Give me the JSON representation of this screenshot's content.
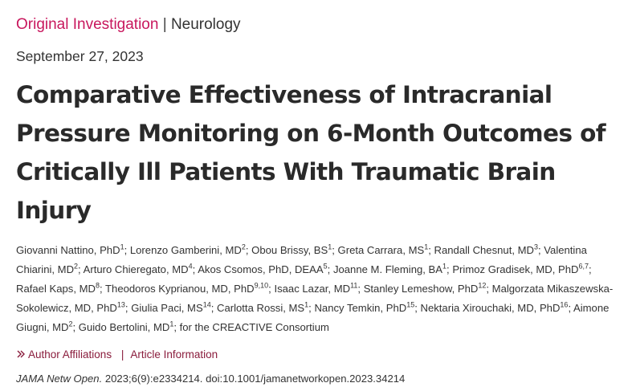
{
  "header": {
    "article_type": "Original Investigation",
    "separator": "|",
    "section": "Neurology"
  },
  "date": "September 27, 2023",
  "title": "Comparative Effectiveness of Intracranial Pressure Monitoring on 6-Month Outcomes of Critically Ill Patients With Traumatic Brain Injury",
  "authors": [
    {
      "name": "Giovanni Nattino, PhD",
      "sup": "1"
    },
    {
      "name": "Lorenzo Gamberini, MD",
      "sup": "2"
    },
    {
      "name": "Obou Brissy, BS",
      "sup": "1"
    },
    {
      "name": "Greta Carrara, MS",
      "sup": "1"
    },
    {
      "name": "Randall Chesnut, MD",
      "sup": "3"
    },
    {
      "name": "Valentina Chiarini, MD",
      "sup": "2"
    },
    {
      "name": "Arturo Chieregato, MD",
      "sup": "4"
    },
    {
      "name": "Akos Csomos, PhD, DEAA",
      "sup": "5"
    },
    {
      "name": "Joanne M. Fleming, BA",
      "sup": "1"
    },
    {
      "name": "Primoz Gradisek, MD, PhD",
      "sup": "6,7"
    },
    {
      "name": "Rafael Kaps, MD",
      "sup": "8"
    },
    {
      "name": "Theodoros Kyprianou, MD, PhD",
      "sup": "9,10"
    },
    {
      "name": "Isaac Lazar, MD",
      "sup": "11"
    },
    {
      "name": "Stanley Lemeshow, PhD",
      "sup": "12"
    },
    {
      "name": "Malgorzata Mikaszewska-Sokolewicz, MD, PhD",
      "sup": "13"
    },
    {
      "name": "Giulia Paci, MS",
      "sup": "14"
    },
    {
      "name": "Carlotta Rossi, MS",
      "sup": "1"
    },
    {
      "name": "Nancy Temkin, PhD",
      "sup": "15"
    },
    {
      "name": "Nektaria Xirouchaki, MD, PhD",
      "sup": "16"
    },
    {
      "name": "Aimone Giugni, MD",
      "sup": "2"
    },
    {
      "name": "Guido Bertolini, MD",
      "sup": "1"
    }
  ],
  "group_author": "for the CREACTIVE Consortium",
  "links": {
    "author_affiliations": "Author Affiliations",
    "separator": "|",
    "article_information": "Article Information"
  },
  "citation": {
    "journal": "JAMA Netw Open.",
    "details": "2023;6(9):e2334214. doi:10.1001/jamanetworkopen.2023.34214"
  },
  "colors": {
    "article_type": "#c8175d",
    "links": "#8a1c3c"
  },
  "icons": {
    "expand": "double-chevron-right-icon"
  }
}
